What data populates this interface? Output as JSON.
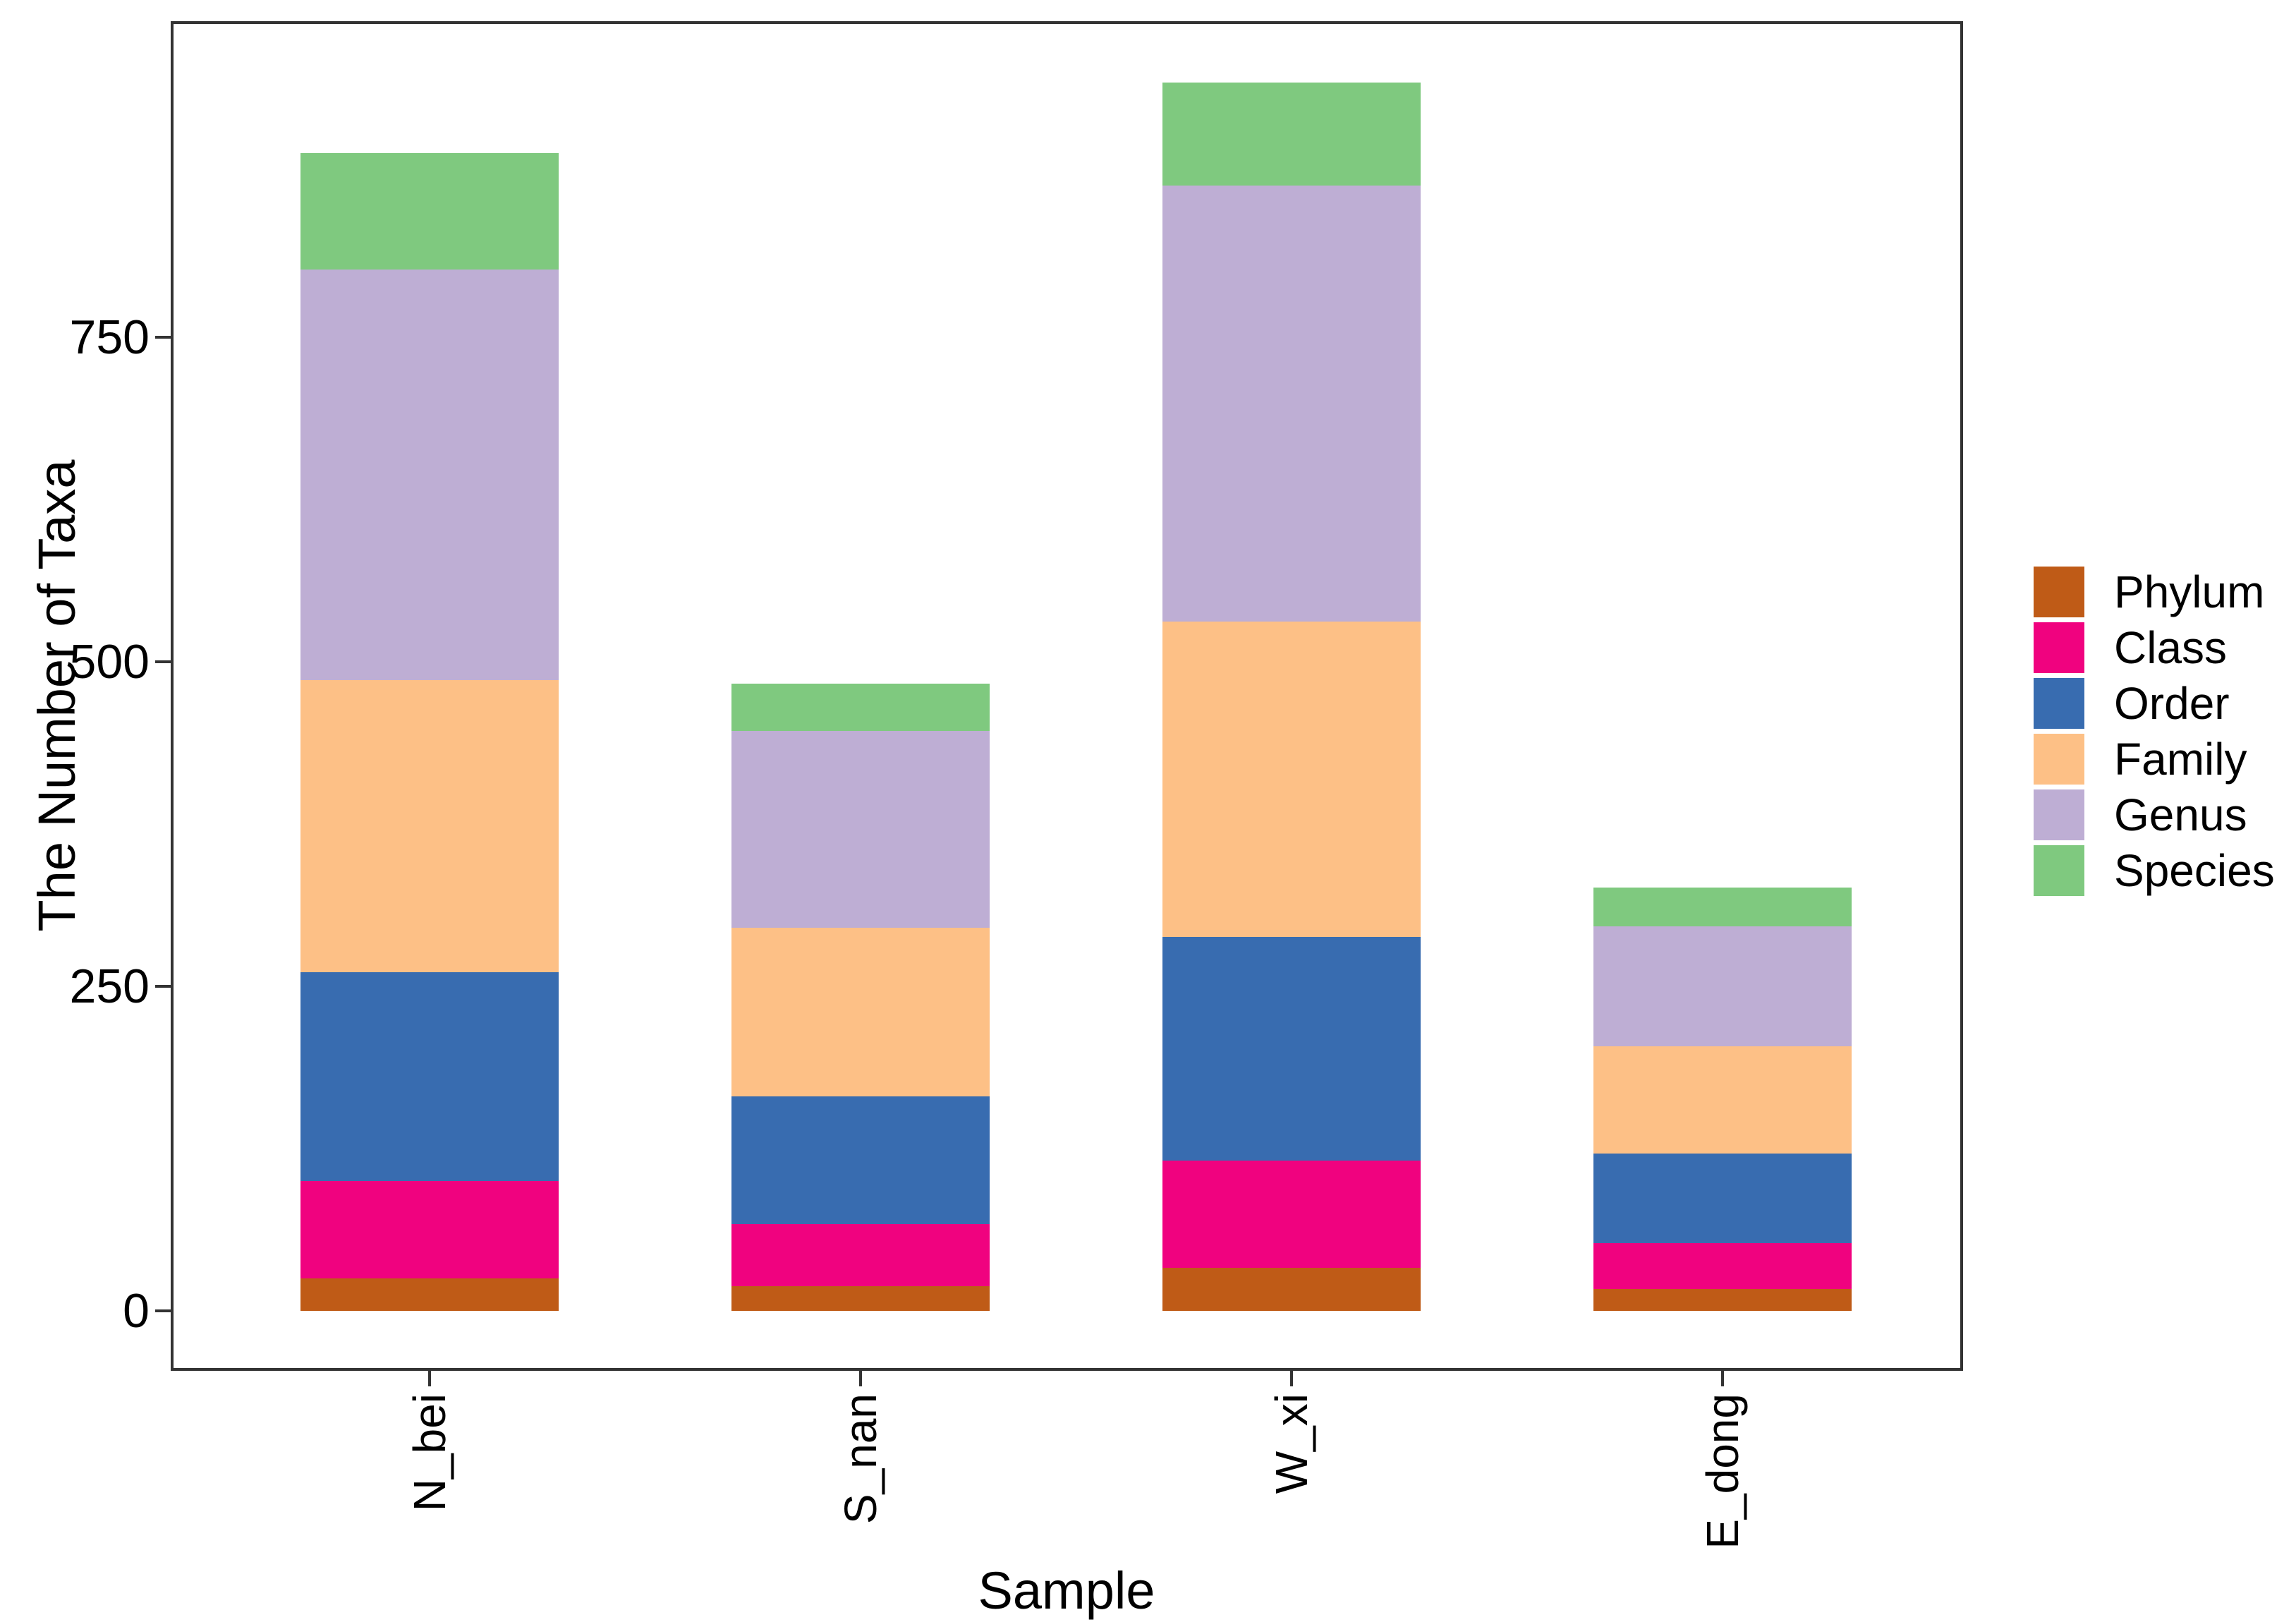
{
  "chart_data": {
    "type": "bar",
    "stacked": true,
    "title": "",
    "xlabel": "Sample",
    "ylabel": "The Number of Taxa",
    "categories": [
      "N_bei",
      "S_nan",
      "W_xi",
      "E_dong"
    ],
    "series": [
      {
        "name": "Phylum",
        "color": "#BF5B17",
        "values": [
          25,
          19,
          33,
          17
        ]
      },
      {
        "name": "Class",
        "color": "#F0027F",
        "values": [
          75,
          48,
          83,
          35
        ]
      },
      {
        "name": "Order",
        "color": "#386CB0",
        "values": [
          161,
          98,
          172,
          69
        ]
      },
      {
        "name": "Family",
        "color": "#FDC086",
        "values": [
          225,
          130,
          243,
          83
        ]
      },
      {
        "name": "Genus",
        "color": "#BEAED4",
        "values": [
          316,
          152,
          336,
          92
        ]
      },
      {
        "name": "Species",
        "color": "#7FC97F",
        "values": [
          90,
          36,
          79,
          30
        ]
      }
    ],
    "totals": [
      892,
      483,
      946,
      326
    ],
    "yticks": [
      0,
      250,
      500,
      750
    ],
    "ylim": [
      0,
      994
    ],
    "grid": false,
    "legend_position": "right"
  },
  "colors": {
    "axis": "#333333",
    "text": "#000000",
    "background": "#ffffff"
  }
}
